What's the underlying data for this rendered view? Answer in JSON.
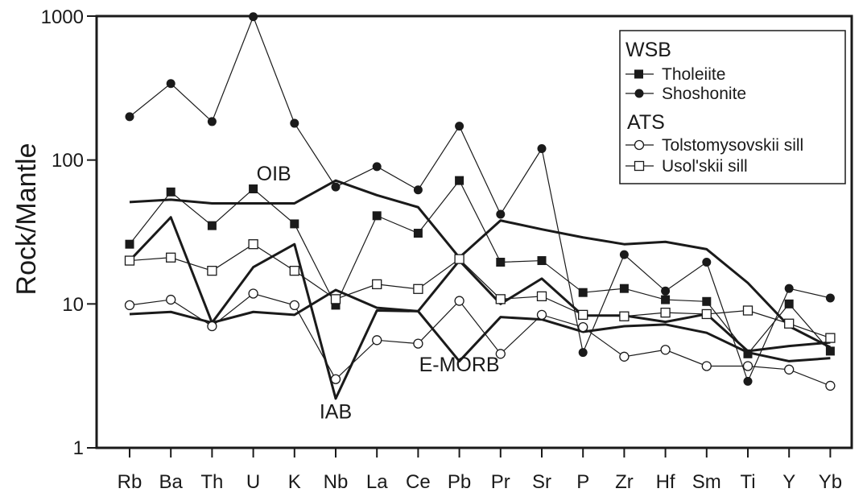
{
  "chart_data": {
    "type": "line",
    "scale": "log",
    "ylabel": "Rock/Mantle",
    "xlabel": "",
    "ylim": [
      1,
      1000
    ],
    "yticks": [
      1,
      10,
      100,
      1000
    ],
    "ytick_labels": [
      "1",
      "10",
      "100",
      "1000"
    ],
    "categories": [
      "Rb",
      "Ba",
      "Th",
      "U",
      "K",
      "Nb",
      "La",
      "Ce",
      "Pb",
      "Pr",
      "Sr",
      "P",
      "Zr",
      "Hf",
      "Sm",
      "Ti",
      "Y",
      "Yb"
    ],
    "reference_lines": [
      {
        "name": "OIB",
        "values": [
          51,
          53,
          50,
          50,
          50,
          72,
          57,
          47,
          21,
          38,
          33,
          29,
          26,
          27,
          24,
          14,
          7,
          5
        ],
        "label_at": 3.5,
        "label_value": 72
      },
      {
        "name": "E-MORB",
        "values": [
          8.5,
          8.8,
          7.4,
          8.8,
          8.4,
          12.5,
          9.4,
          8.9,
          4.0,
          8.1,
          7.8,
          6.4,
          7.0,
          7.2,
          6.3,
          4.6,
          4.0,
          4.2
        ],
        "label_at": 8.0,
        "label_value": 3.4
      },
      {
        "name": "IAB",
        "values": [
          20,
          40,
          7.4,
          18,
          26,
          2.2,
          9.0,
          8.9,
          20,
          10,
          15,
          8.3,
          8.3,
          7.5,
          8.5,
          4.7,
          5.1,
          5.4
        ],
        "label_at": 5.0,
        "label_value": 1.6
      }
    ],
    "legend": {
      "groups": [
        {
          "heading": "WSB",
          "entries": [
            "Tholeiite",
            "Shoshonite"
          ]
        },
        {
          "heading": "ATS",
          "entries": [
            "Tolstomysovskii sill",
            "Usol'skii sill"
          ]
        }
      ],
      "placement": "top-right"
    },
    "series": [
      {
        "name": "Tholeiite",
        "group": "WSB",
        "marker": "square-filled",
        "values": [
          26,
          60,
          35,
          63,
          36,
          9.8,
          41,
          31,
          72,
          19.5,
          20,
          12,
          12.8,
          10.7,
          10.4,
          4.5,
          10,
          4.7
        ]
      },
      {
        "name": "Shoshonite",
        "group": "WSB",
        "marker": "circle-filled",
        "values": [
          200,
          340,
          185,
          990,
          180,
          65,
          90,
          62,
          172,
          42,
          120,
          4.6,
          22,
          12.3,
          19.5,
          2.9,
          12.8,
          11
        ]
      },
      {
        "name": "Tolstomysovskii sill",
        "group": "ATS",
        "marker": "circle-open",
        "values": [
          9.8,
          10.7,
          7.0,
          11.8,
          9.8,
          3.0,
          5.6,
          5.3,
          10.5,
          4.5,
          8.4,
          6.9,
          4.3,
          4.8,
          3.7,
          3.7,
          3.5,
          2.7
        ]
      },
      {
        "name": "Usol'skii sill",
        "group": "ATS",
        "marker": "square-open",
        "values": [
          20,
          21,
          17,
          26,
          17,
          10.8,
          13.7,
          12.7,
          20.5,
          10.8,
          11.3,
          8.4,
          8.2,
          8.7,
          8.5,
          9.0,
          7.3,
          5.8
        ]
      }
    ]
  }
}
